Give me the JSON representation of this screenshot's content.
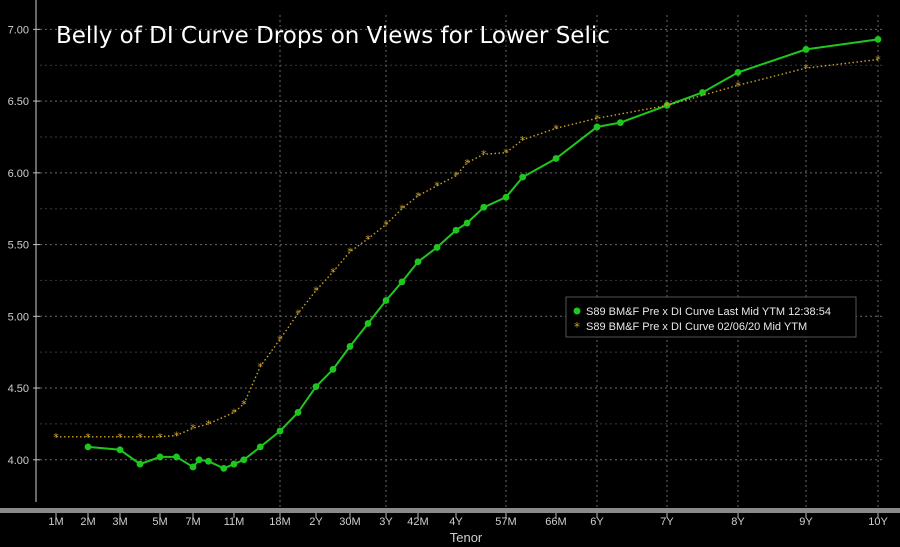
{
  "chart_data": {
    "type": "line",
    "title": "Belly of DI Curve Drops on Views for Lower Selic",
    "xlabel": "Tenor",
    "ylabel": "",
    "ylim": [
      3.65,
      7.1
    ],
    "yticks": [
      "4.00",
      "4.50",
      "5.00",
      "5.50",
      "6.00",
      "6.50",
      "7.00"
    ],
    "grid": true,
    "legend_position": "right-middle",
    "x_ticks": [
      {
        "label": "1M",
        "t": 1
      },
      {
        "label": "2M",
        "t": 2
      },
      {
        "label": "3M",
        "t": 3
      },
      {
        "label": "5M",
        "t": 5
      },
      {
        "label": "7M",
        "t": 7
      },
      {
        "label": "11M",
        "t": 11
      },
      {
        "label": "18M",
        "t": 18
      },
      {
        "label": "2Y",
        "t": 24
      },
      {
        "label": "30M",
        "t": 30
      },
      {
        "label": "3Y",
        "t": 36
      },
      {
        "label": "42M",
        "t": 42
      },
      {
        "label": "4Y",
        "t": 48
      },
      {
        "label": "57M",
        "t": 57
      },
      {
        "label": "66M",
        "t": 66
      },
      {
        "label": "6Y",
        "t": 72
      },
      {
        "label": "7Y",
        "t": 84
      },
      {
        "label": "8Y",
        "t": 96
      },
      {
        "label": "9Y",
        "t": 108
      },
      {
        "label": "10Y",
        "t": 120
      }
    ],
    "series": [
      {
        "name": "S89 BM&F Pre x DI Curve Last Mid YTM 12:38:54",
        "color": "#1ec71e",
        "marker": "circle",
        "points": [
          [
            2,
            4.09
          ],
          [
            3,
            4.07
          ],
          [
            4,
            3.97
          ],
          [
            5,
            4.02
          ],
          [
            6,
            4.02
          ],
          [
            7,
            3.95
          ],
          [
            7.6,
            4.0
          ],
          [
            8.5,
            3.99
          ],
          [
            10,
            3.94
          ],
          [
            11,
            3.97
          ],
          [
            12.5,
            4.0
          ],
          [
            15,
            4.09
          ],
          [
            18,
            4.2
          ],
          [
            21,
            4.33
          ],
          [
            24,
            4.51
          ],
          [
            27,
            4.63
          ],
          [
            30,
            4.79
          ],
          [
            33,
            4.95
          ],
          [
            36,
            5.11
          ],
          [
            39,
            5.24
          ],
          [
            42,
            5.38
          ],
          [
            45,
            5.48
          ],
          [
            48,
            5.6
          ],
          [
            50,
            5.65
          ],
          [
            53,
            5.76
          ],
          [
            57,
            5.83
          ],
          [
            60,
            5.97
          ],
          [
            66,
            6.1
          ],
          [
            72,
            6.32
          ],
          [
            76,
            6.35
          ],
          [
            84,
            6.47
          ],
          [
            90,
            6.56
          ],
          [
            96,
            6.7
          ],
          [
            108,
            6.86
          ],
          [
            120,
            6.93
          ]
        ]
      },
      {
        "name": "S89 BM&F Pre x DI Curve 02/06/20 Mid YTM",
        "color": "#c9a227",
        "marker": "asterisk",
        "points": [
          [
            1,
            4.16
          ],
          [
            2,
            4.16
          ],
          [
            3,
            4.16
          ],
          [
            4,
            4.16
          ],
          [
            5,
            4.16
          ],
          [
            6,
            4.17
          ],
          [
            7,
            4.22
          ],
          [
            8.5,
            4.25
          ],
          [
            11,
            4.33
          ],
          [
            12.5,
            4.39
          ],
          [
            15,
            4.65
          ],
          [
            18,
            4.84
          ],
          [
            21,
            5.02
          ],
          [
            24,
            5.18
          ],
          [
            27,
            5.31
          ],
          [
            30,
            5.45
          ],
          [
            33,
            5.54
          ],
          [
            36,
            5.64
          ],
          [
            39,
            5.75
          ],
          [
            42,
            5.84
          ],
          [
            45,
            5.91
          ],
          [
            48,
            5.98
          ],
          [
            50,
            6.07
          ],
          [
            53,
            6.13
          ],
          [
            57,
            6.14
          ],
          [
            60,
            6.23
          ],
          [
            66,
            6.31
          ],
          [
            72,
            6.38
          ],
          [
            84,
            6.47
          ],
          [
            96,
            6.61
          ],
          [
            108,
            6.73
          ],
          [
            120,
            6.79
          ]
        ]
      }
    ]
  }
}
